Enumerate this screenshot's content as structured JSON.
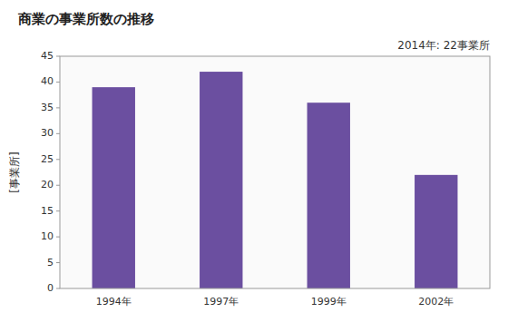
{
  "chart_data": {
    "type": "bar",
    "title": "商業の事業所数の推移",
    "ylabel": "[事業所]",
    "annotation": "2014年: 22事業所",
    "categories": [
      "1994年",
      "1997年",
      "1999年",
      "2002年"
    ],
    "values": [
      39,
      42,
      36,
      22
    ],
    "color": "#6B4FA0",
    "ylim": [
      0,
      45
    ],
    "yticks": [
      0,
      5,
      10,
      15,
      20,
      25,
      30,
      35,
      40,
      45
    ],
    "grid": false
  }
}
